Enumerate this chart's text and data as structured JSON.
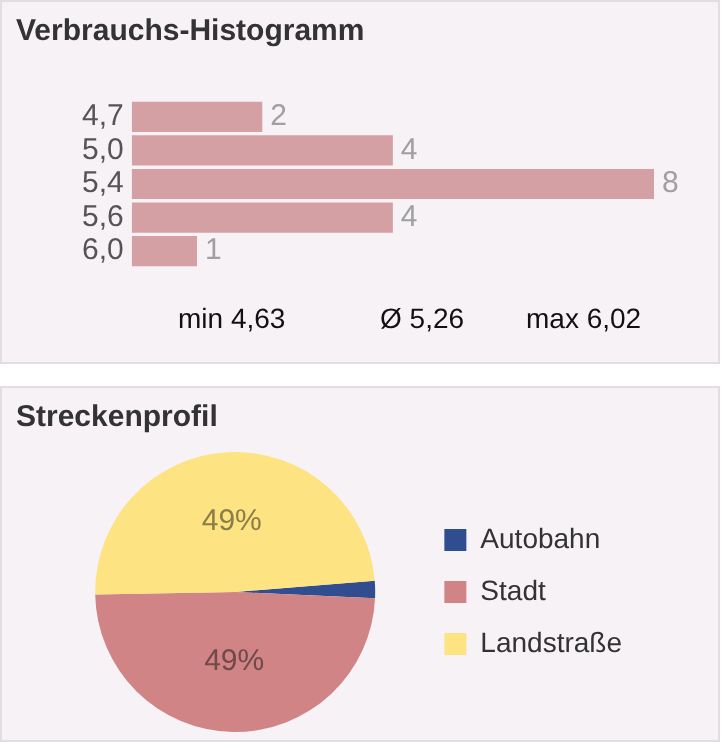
{
  "chart_data": [
    {
      "type": "bar",
      "title": "Verbrauchs-Histogramm",
      "orientation": "horizontal",
      "categories": [
        "4,7",
        "5,0",
        "5,4",
        "5,6",
        "6,0"
      ],
      "values": [
        2,
        4,
        8,
        4,
        1
      ],
      "color": "#d4a0a3",
      "data_labels": true,
      "tick_labels": "y",
      "grid": false,
      "legend": false,
      "annotations": [
        "min 4,63",
        "Ø 5,26",
        "max 6,02"
      ]
    },
    {
      "type": "pie",
      "title": "Streckenprofil",
      "categories": [
        "Autobahn",
        "Stadt",
        "Landstraße"
      ],
      "values": [
        2,
        49,
        49
      ],
      "colors": [
        "#2f4d8f",
        "#d08485",
        "#fde382"
      ],
      "value_labels": [
        null,
        "49%",
        "49%"
      ],
      "legend": "right"
    }
  ]
}
